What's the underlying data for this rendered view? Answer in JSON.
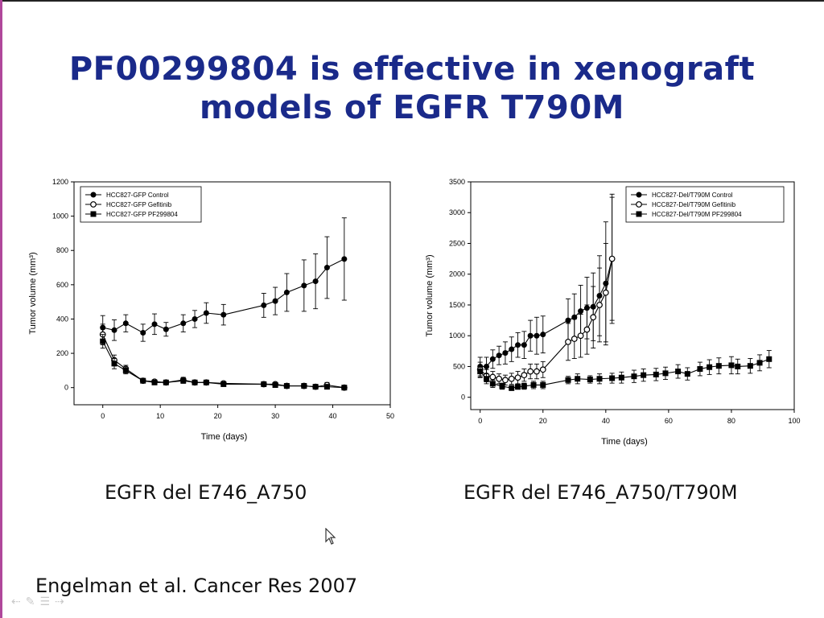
{
  "slide": {
    "title_line1": "PF00299804 is effective in xenograft",
    "title_line2": "models of EGFR T790M",
    "caption_left": "EGFR del E746_A750",
    "caption_right": "EGFR del E746_A750/T790M",
    "citation": "Engelman et al. Cancer Res 2007",
    "nav_icons": [
      "arrow-left-icon",
      "pen-icon",
      "menu-icon",
      "arrow-right-icon"
    ]
  },
  "chart_data": [
    {
      "type": "line",
      "xlabel": "Time (days)",
      "ylabel": "Tumor volume (mm³)",
      "xlim": [
        -5,
        50
      ],
      "ylim": [
        -100,
        1200
      ],
      "xticks": [
        0,
        10,
        20,
        30,
        40,
        50
      ],
      "yticks": [
        0,
        200,
        400,
        600,
        800,
        1000,
        1200
      ],
      "legend_position": "top-left",
      "series": [
        {
          "name": "HCC827-GFP Control",
          "marker": "filled-circle",
          "x": [
            0,
            2,
            4,
            7,
            9,
            11,
            14,
            16,
            18,
            21,
            28,
            30,
            32,
            35,
            37,
            39,
            42
          ],
          "y": [
            350,
            335,
            375,
            320,
            370,
            340,
            375,
            400,
            435,
            425,
            480,
            505,
            555,
            595,
            620,
            700,
            750
          ],
          "err": [
            70,
            60,
            50,
            50,
            60,
            40,
            50,
            50,
            60,
            60,
            70,
            80,
            110,
            150,
            160,
            180,
            240
          ]
        },
        {
          "name": "HCC827-GFP Gefitinib",
          "marker": "open-circle",
          "x": [
            0,
            2,
            4,
            7,
            9,
            11,
            14,
            16,
            18,
            21,
            28,
            30,
            32,
            35,
            37,
            39,
            42
          ],
          "y": [
            310,
            160,
            110,
            40,
            35,
            30,
            45,
            30,
            30,
            25,
            20,
            20,
            10,
            10,
            5,
            15,
            0
          ],
          "err": [
            60,
            30,
            20,
            10,
            10,
            10,
            15,
            10,
            10,
            10,
            10,
            10,
            10,
            10,
            10,
            15,
            5
          ]
        },
        {
          "name": "HCC827-GFP PF299804",
          "marker": "filled-square",
          "x": [
            0,
            2,
            4,
            7,
            9,
            11,
            14,
            16,
            18,
            21,
            28,
            30,
            32,
            35,
            37,
            39,
            42
          ],
          "y": [
            270,
            140,
            100,
            40,
            30,
            30,
            40,
            30,
            30,
            20,
            20,
            15,
            10,
            10,
            5,
            5,
            0
          ],
          "err": [
            40,
            30,
            20,
            10,
            10,
            10,
            15,
            10,
            10,
            10,
            10,
            10,
            10,
            10,
            10,
            10,
            5
          ]
        }
      ]
    },
    {
      "type": "line",
      "xlabel": "Time (days)",
      "ylabel": "Tumor volume (mm³)",
      "xlim": [
        -3,
        100
      ],
      "ylim": [
        -200,
        3500
      ],
      "xticks": [
        0,
        20,
        40,
        60,
        80,
        100
      ],
      "yticks": [
        0,
        500,
        1000,
        1500,
        2000,
        2500,
        3000,
        3500
      ],
      "legend_position": "top-right",
      "series": [
        {
          "name": "HCC827-Del/T790M Control",
          "marker": "filled-circle",
          "x": [
            0,
            2,
            4,
            6,
            8,
            10,
            12,
            14,
            16,
            18,
            20,
            28,
            30,
            32,
            34,
            36,
            38,
            40,
            42
          ],
          "y": [
            500,
            500,
            620,
            680,
            720,
            780,
            850,
            850,
            1000,
            1000,
            1020,
            1250,
            1300,
            1400,
            1450,
            1470,
            1650,
            1850,
            2250
          ],
          "err": [
            150,
            150,
            150,
            150,
            180,
            200,
            200,
            220,
            250,
            300,
            300,
            350,
            380,
            420,
            500,
            550,
            650,
            1000,
            1050
          ]
        },
        {
          "name": "HCC827-Del/T790M Gefitinib",
          "marker": "open-circle",
          "x": [
            0,
            2,
            4,
            6,
            8,
            10,
            12,
            14,
            16,
            18,
            20,
            28,
            30,
            32,
            34,
            36,
            38,
            40,
            42
          ],
          "y": [
            450,
            350,
            330,
            300,
            280,
            300,
            320,
            360,
            420,
            420,
            450,
            900,
            950,
            1000,
            1100,
            1300,
            1500,
            1700,
            2250
          ],
          "err": [
            120,
            100,
            90,
            80,
            80,
            90,
            100,
            100,
            120,
            120,
            130,
            300,
            320,
            350,
            400,
            500,
            600,
            800,
            1000
          ]
        },
        {
          "name": "HCC827-Del/T790M PF299804",
          "marker": "filled-square",
          "x": [
            0,
            2,
            4,
            7,
            10,
            12,
            14,
            17,
            20,
            28,
            31,
            35,
            38,
            42,
            45,
            49,
            52,
            56,
            59,
            63,
            66,
            70,
            73,
            76,
            80,
            82,
            86,
            89,
            92
          ],
          "y": [
            420,
            300,
            220,
            180,
            150,
            170,
            180,
            200,
            200,
            280,
            300,
            290,
            300,
            310,
            320,
            340,
            360,
            370,
            390,
            420,
            380,
            460,
            490,
            510,
            520,
            500,
            510,
            560,
            620
          ],
          "err": [
            100,
            80,
            60,
            50,
            40,
            40,
            50,
            60,
            60,
            60,
            80,
            60,
            80,
            80,
            90,
            100,
            100,
            100,
            100,
            110,
            100,
            110,
            120,
            130,
            140,
            120,
            120,
            130,
            140
          ]
        }
      ]
    }
  ]
}
